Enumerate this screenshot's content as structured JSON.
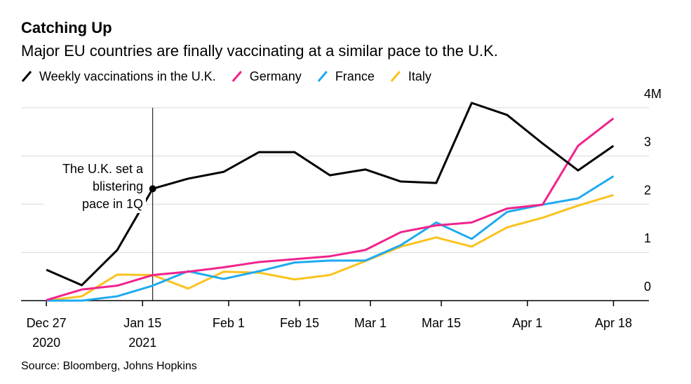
{
  "chart_data": {
    "type": "line",
    "title": "Catching Up",
    "subtitle": "Major EU countries are finally vaccinating at a similar pace to the U.K.",
    "source": "Source: Bloomberg, Johns Hopkins",
    "annotation": [
      "The U.K. set a",
      "blistering",
      "pace in 1Q"
    ],
    "x": [
      "2020-12-27",
      "2021-01-03",
      "2021-01-10",
      "2021-01-17",
      "2021-01-24",
      "2021-01-31",
      "2021-02-07",
      "2021-02-14",
      "2021-02-21",
      "2021-02-28",
      "2021-03-07",
      "2021-03-14",
      "2021-03-21",
      "2021-03-28",
      "2021-04-04",
      "2021-04-11",
      "2021-04-18"
    ],
    "series": [
      {
        "name": "Weekly vaccinations in the U.K.",
        "color": "#000000",
        "values": [
          0.64,
          0.32,
          1.05,
          2.32,
          2.53,
          2.67,
          3.08,
          3.08,
          2.6,
          2.72,
          2.47,
          2.44,
          4.1,
          3.85,
          3.26,
          2.7,
          3.21
        ]
      },
      {
        "name": "Germany",
        "color": "#f0238c",
        "values": [
          0.01,
          0.23,
          0.31,
          0.53,
          0.6,
          0.69,
          0.8,
          0.86,
          0.92,
          1.05,
          1.42,
          1.56,
          1.62,
          1.91,
          1.99,
          3.21,
          3.78
        ]
      },
      {
        "name": "France",
        "color": "#1eaaf0",
        "values": [
          0,
          0,
          0.09,
          0.31,
          0.61,
          0.45,
          0.61,
          0.79,
          0.83,
          0.83,
          1.15,
          1.62,
          1.28,
          1.84,
          1.99,
          2.12,
          2.58
        ]
      },
      {
        "name": "Italy",
        "color": "#fbc21e",
        "values": [
          0,
          0.09,
          0.54,
          0.53,
          0.25,
          0.6,
          0.58,
          0.44,
          0.53,
          0.82,
          1.12,
          1.31,
          1.12,
          1.52,
          1.72,
          1.97,
          2.19
        ]
      }
    ],
    "xlim": [
      "2020-12-22",
      "2021-04-25"
    ],
    "xticks": [
      {
        "value": "2020-12-27",
        "label": "Dec 27",
        "sublabel": "2020"
      },
      {
        "value": "2021-01-15",
        "label": "Jan 15",
        "sublabel": "2021"
      },
      {
        "value": "2021-02-01",
        "label": "Feb 1"
      },
      {
        "value": "2021-02-15",
        "label": "Feb 15"
      },
      {
        "value": "2021-03-01",
        "label": "Mar 1"
      },
      {
        "value": "2021-03-15",
        "label": "Mar 15"
      },
      {
        "value": "2021-04-01",
        "label": "Apr 1"
      },
      {
        "value": "2021-04-18",
        "label": "Apr 18"
      }
    ],
    "ylim": [
      0,
      4.2
    ],
    "yticks": [
      0,
      1,
      2,
      3,
      {
        "value": 4,
        "label": "4M"
      }
    ],
    "grid": true
  }
}
